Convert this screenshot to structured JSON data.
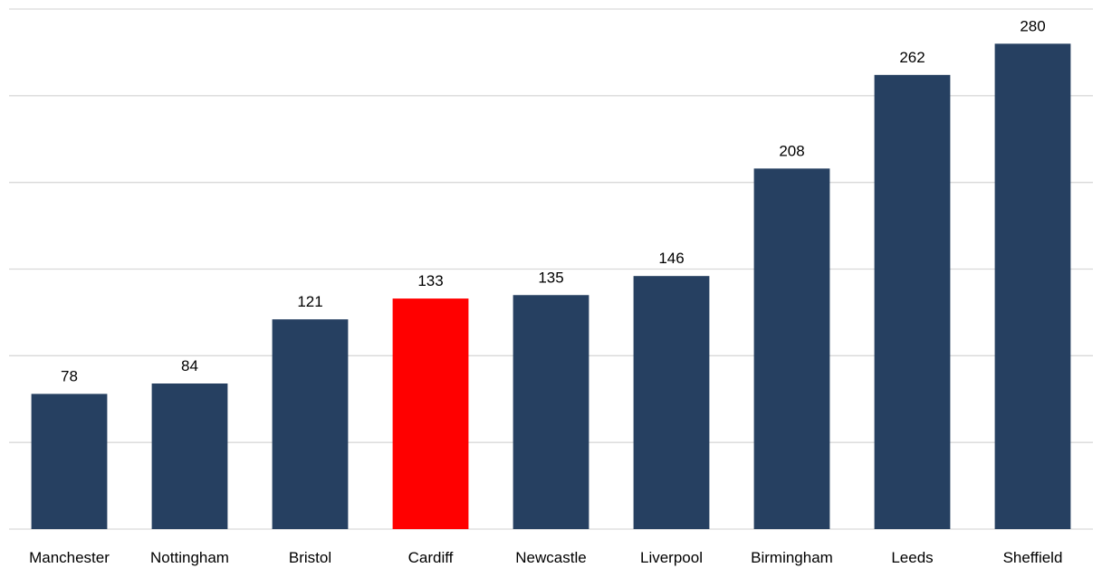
{
  "chart_data": {
    "type": "bar",
    "categories": [
      "Manchester",
      "Nottingham",
      "Bristol",
      "Cardiff",
      "Newcastle",
      "Liverpool",
      "Birmingham",
      "Leeds",
      "Sheffield"
    ],
    "values": [
      78,
      84,
      121,
      133,
      135,
      146,
      208,
      262,
      280
    ],
    "title": "",
    "xlabel": "",
    "ylabel": "",
    "ylim": [
      0,
      300
    ],
    "ytick_step": 50,
    "y_tick_labels_shown": false,
    "grid": true,
    "legend": "none",
    "data_labels": true,
    "colors": {
      "default": "#264061",
      "highlight": "#ff0000",
      "highlight_category": "Cardiff",
      "gridline": "#d9d9d9"
    }
  }
}
